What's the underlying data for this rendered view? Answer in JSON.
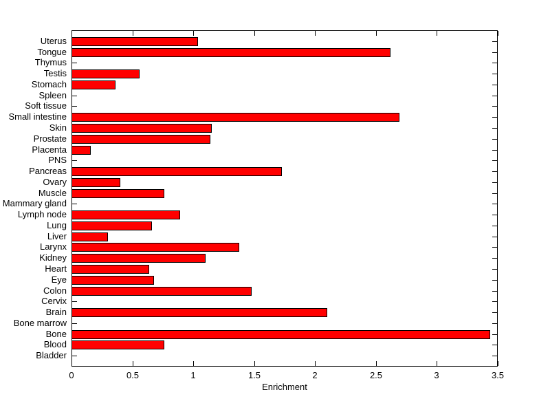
{
  "chart_data": {
    "type": "bar",
    "orientation": "horizontal",
    "title": "",
    "xlabel": "Enrichment",
    "ylabel": "",
    "xlim": [
      0,
      3.5
    ],
    "xticks": [
      0,
      0.5,
      1,
      1.5,
      2,
      2.5,
      3,
      3.5
    ],
    "xtick_labels": [
      "0",
      "0.5",
      "1",
      "1.5",
      "2",
      "2.5",
      "3",
      "3.5"
    ],
    "grid": false,
    "legend": null,
    "bar_color": "#ff0000",
    "bar_edge_color": "#000000",
    "axis_color": "#000000",
    "background_color": "#ffffff",
    "categories": [
      "Uterus",
      "Tongue",
      "Thymus",
      "Testis",
      "Stomach",
      "Spleen",
      "Soft tissue",
      "Small intestine",
      "Skin",
      "Prostate",
      "Placenta",
      "PNS",
      "Pancreas",
      "Ovary",
      "Muscle",
      "Mammary gland",
      "Lymph node",
      "Lung",
      "Liver",
      "Larynx",
      "Kidney",
      "Heart",
      "Eye",
      "Colon",
      "Cervix",
      "Brain",
      "Bone marrow",
      "Bone",
      "Blood",
      "Bladder"
    ],
    "values": [
      1.04,
      2.62,
      0,
      0.56,
      0.36,
      0,
      0,
      2.69,
      1.15,
      1.14,
      0.16,
      0,
      1.73,
      0.4,
      0.76,
      0,
      0.89,
      0.66,
      0.3,
      1.38,
      1.1,
      0.64,
      0.68,
      1.48,
      0,
      2.1,
      0,
      3.44,
      0.76,
      0
    ]
  }
}
